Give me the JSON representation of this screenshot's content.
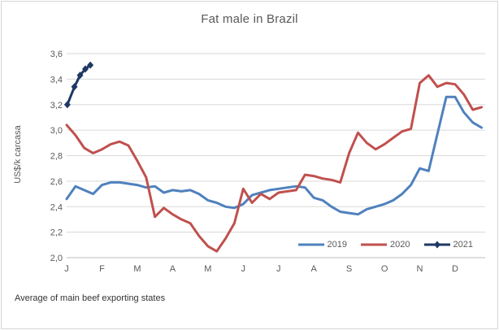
{
  "chart_data": {
    "type": "line",
    "title": "Fat male in Brazil",
    "ylabel": "US$/k carcasa",
    "xlabel": "",
    "footnote": "Average of main beef exporting states",
    "x_categories": [
      "J",
      "F",
      "M",
      "A",
      "M",
      "J",
      "J",
      "A",
      "S",
      "O",
      "N",
      "D"
    ],
    "ylim": [
      2.0,
      3.6
    ],
    "y_ticks": [
      2.0,
      2.2,
      2.4,
      2.6,
      2.8,
      3.0,
      3.2,
      3.4,
      3.6
    ],
    "y_tick_labels": [
      "2,0",
      "2,2",
      "2,4",
      "2,6",
      "2,8",
      "3,0",
      "3,2",
      "3,4",
      "3,6"
    ],
    "grid": "horizontal",
    "legend_position": "bottom-right-inside",
    "colors": {
      "series_2019": "#4F81BD",
      "series_2020": "#C0504D",
      "series_2021": "#1F3864",
      "gridline": "#D9D9D9",
      "axis_line": "#BFBFBF",
      "tick_text": "#595959",
      "title_text": "#595959",
      "footnote_text": "#333333",
      "chart_border": "#D6D6D6"
    },
    "series": [
      {
        "name": "2019",
        "color": "#4F81BD",
        "marker": "none",
        "x_months": [
          0,
          0.25,
          0.5,
          0.75,
          1,
          1.25,
          1.5,
          1.75,
          2,
          2.25,
          2.5,
          2.75,
          3,
          3.25,
          3.5,
          3.75,
          4,
          4.25,
          4.5,
          4.75,
          5,
          5.25,
          5.5,
          5.75,
          6,
          6.25,
          6.5,
          6.75,
          7,
          7.25,
          7.5,
          7.75,
          8,
          8.25,
          8.5,
          8.75,
          9,
          9.25,
          9.5,
          9.75,
          10,
          10.25,
          10.5,
          10.75,
          11,
          11.25,
          11.5,
          11.75
        ],
        "values": [
          2.46,
          2.56,
          2.53,
          2.5,
          2.57,
          2.59,
          2.59,
          2.58,
          2.57,
          2.55,
          2.56,
          2.51,
          2.53,
          2.52,
          2.53,
          2.5,
          2.45,
          2.43,
          2.4,
          2.39,
          2.42,
          2.49,
          2.51,
          2.53,
          2.54,
          2.55,
          2.56,
          2.55,
          2.47,
          2.45,
          2.4,
          2.36,
          2.35,
          2.34,
          2.38,
          2.4,
          2.42,
          2.45,
          2.5,
          2.57,
          2.7,
          2.68,
          2.97,
          3.26,
          3.26,
          3.14,
          3.06,
          3.02
        ]
      },
      {
        "name": "2020",
        "color": "#C0504D",
        "marker": "none",
        "x_months": [
          0,
          0.25,
          0.5,
          0.75,
          1,
          1.25,
          1.5,
          1.75,
          2,
          2.25,
          2.5,
          2.75,
          3,
          3.25,
          3.5,
          3.75,
          4,
          4.25,
          4.5,
          4.75,
          5,
          5.25,
          5.5,
          5.75,
          6,
          6.25,
          6.5,
          6.75,
          7,
          7.25,
          7.5,
          7.75,
          8,
          8.25,
          8.5,
          8.75,
          9,
          9.25,
          9.5,
          9.75,
          10,
          10.25,
          10.5,
          10.75,
          11,
          11.25,
          11.5,
          11.75
        ],
        "values": [
          3.04,
          2.96,
          2.86,
          2.82,
          2.85,
          2.89,
          2.91,
          2.88,
          2.76,
          2.63,
          2.32,
          2.39,
          2.34,
          2.3,
          2.27,
          2.17,
          2.09,
          2.05,
          2.15,
          2.27,
          2.54,
          2.43,
          2.5,
          2.46,
          2.51,
          2.52,
          2.53,
          2.65,
          2.64,
          2.62,
          2.61,
          2.59,
          2.82,
          2.98,
          2.9,
          2.85,
          2.89,
          2.94,
          2.99,
          3.01,
          3.37,
          3.43,
          3.34,
          3.37,
          3.36,
          3.28,
          3.16,
          3.18
        ]
      },
      {
        "name": "2021",
        "color": "#1F3864",
        "marker": "diamond",
        "x_months": [
          0.02,
          0.22,
          0.38,
          0.53,
          0.67
        ],
        "values": [
          3.2,
          3.34,
          3.43,
          3.48,
          3.51
        ]
      }
    ]
  }
}
